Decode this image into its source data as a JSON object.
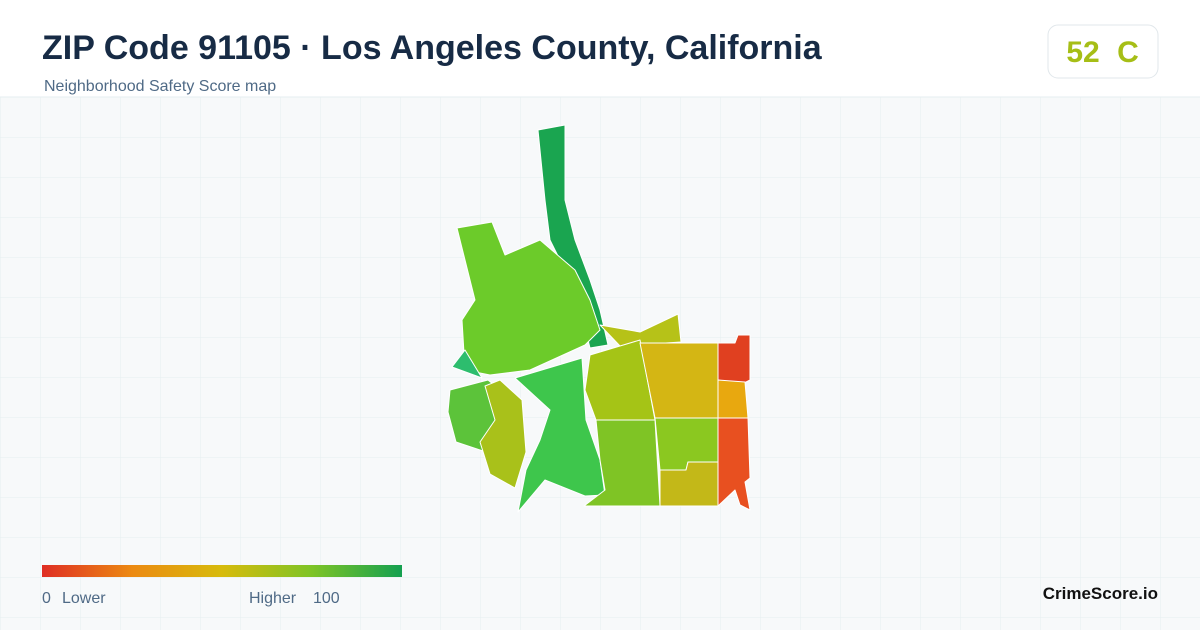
{
  "header": {
    "title": "ZIP Code 91105 · Los Angeles County, California",
    "subtitle": "Neighborhood Safety Score map"
  },
  "score": {
    "value": "52",
    "grade": "C"
  },
  "legend": {
    "min": "0",
    "min_label": "Lower",
    "max_label": "Higher",
    "max": "100"
  },
  "brand": "CrimeScore.io"
}
